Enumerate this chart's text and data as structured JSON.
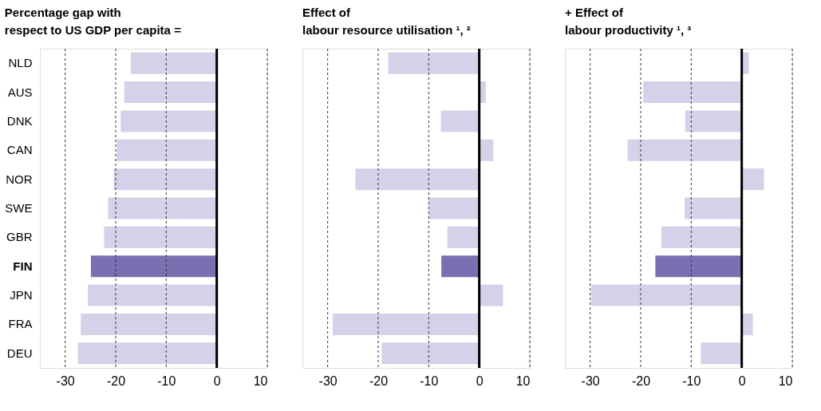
{
  "chart_data": [
    {
      "type": "bar",
      "orientation": "horizontal",
      "title": "Percentage gap with\nrespect to US GDP per capita =",
      "categories": [
        "NLD",
        "AUS",
        "DNK",
        "CAN",
        "NOR",
        "SWE",
        "GBR",
        "FIN",
        "JPN",
        "FRA",
        "DEU"
      ],
      "values": [
        -17.0,
        -18.3,
        -19.0,
        -19.8,
        -20.4,
        -21.5,
        -22.3,
        -24.9,
        -25.5,
        -26.9,
        -27.5
      ],
      "colors": [
        "#d4d1e8",
        "#d4d1e8",
        "#d4d1e8",
        "#d4d1e8",
        "#d4d1e8",
        "#d4d1e8",
        "#d4d1e8",
        "#7870b0",
        "#d4d1e8",
        "#d4d1e8",
        "#d4d1e8"
      ],
      "xlim": [
        -35,
        10
      ],
      "xticks": [
        -30,
        -20,
        -10,
        0,
        10
      ],
      "grid": "x",
      "line_style": "dashed",
      "ref_lines": [
        {
          "axis": "x",
          "value": 0,
          "color": "#000000",
          "line_style": "solid"
        }
      ]
    },
    {
      "type": "bar",
      "orientation": "horizontal",
      "title": "Effect of\nlabour resource utilisation ¹, ²",
      "categories": [
        null,
        null,
        null,
        null,
        null,
        null,
        null,
        null,
        null,
        null,
        null
      ],
      "values": [
        -18.0,
        1.3,
        -7.6,
        2.8,
        -24.5,
        -10.0,
        -6.3,
        -7.5,
        4.7,
        -29.0,
        -19.3
      ],
      "colors": [
        "#d4d1e8",
        "#d4d1e8",
        "#d4d1e8",
        "#d4d1e8",
        "#d4d1e8",
        "#d4d1e8",
        "#d4d1e8",
        "#7870b0",
        "#d4d1e8",
        "#d4d1e8",
        "#d4d1e8"
      ],
      "xlim": [
        -35,
        10
      ],
      "xticks": [
        -30,
        -20,
        -10,
        0,
        10
      ],
      "grid": "x",
      "line_style": "dashed",
      "tick_labels": "x",
      "ref_lines": [
        {
          "axis": "x",
          "value": 0,
          "color": "#000000",
          "line_style": "solid"
        }
      ]
    },
    {
      "type": "bar",
      "orientation": "horizontal",
      "title": "+ Effect of\nlabour productivity ¹, ³",
      "categories": [
        null,
        null,
        null,
        null,
        null,
        null,
        null,
        null,
        null,
        null,
        null
      ],
      "values": [
        1.4,
        -19.5,
        -11.2,
        -22.6,
        4.4,
        -11.3,
        -15.9,
        -17.1,
        -29.8,
        2.2,
        -8.1
      ],
      "colors": [
        "#d4d1e8",
        "#d4d1e8",
        "#d4d1e8",
        "#d4d1e8",
        "#d4d1e8",
        "#d4d1e8",
        "#d4d1e8",
        "#7870b0",
        "#d4d1e8",
        "#d4d1e8",
        "#d4d1e8"
      ],
      "xlim": [
        -35,
        10
      ],
      "xticks": [
        -30,
        -20,
        -10,
        0,
        10
      ],
      "grid": "x",
      "line_style": "dashed",
      "tick_labels": "x",
      "ref_lines": [
        {
          "axis": "x",
          "value": 0,
          "color": "#000000",
          "line_style": "solid"
        }
      ]
    }
  ]
}
